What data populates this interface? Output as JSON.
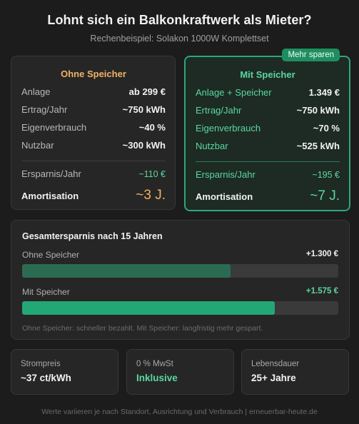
{
  "header": {
    "title": "Lohnt sich ein Balkonkraftwerk als Mieter?",
    "subtitle": "Rechenbeispiel: Solakon 1000W Komplettset"
  },
  "cards": {
    "left": {
      "title": "Ohne Speicher",
      "rows": [
        {
          "label": "Anlage",
          "value": "ab 299 €"
        },
        {
          "label": "Ertrag/Jahr",
          "value": "~750 kWh"
        },
        {
          "label": "Eigenverbrauch",
          "value": "~40 %"
        },
        {
          "label": "Nutzbar",
          "value": "~300 kWh"
        }
      ],
      "savings_label": "Ersparnis/Jahr",
      "savings_value": "~110 €",
      "amort_label": "Amortisation",
      "amort_value": "~3 J."
    },
    "right": {
      "badge": "Mehr sparen",
      "title": "Mit Speicher",
      "rows": [
        {
          "label": "Anlage + Speicher",
          "value": "1.349 €"
        },
        {
          "label": "Ertrag/Jahr",
          "value": "~750 kWh"
        },
        {
          "label": "Eigenverbrauch",
          "value": "~70 %"
        },
        {
          "label": "Nutzbar",
          "value": "~525 kWh"
        }
      ],
      "savings_label": "Ersparnis/Jahr",
      "savings_value": "~195 €",
      "amort_label": "Amortisation",
      "amort_value": "~7 J."
    }
  },
  "totals": {
    "title": "Gesamtersparnis nach 15 Jahren",
    "bars": [
      {
        "label": "Ohne Speicher",
        "amount": "+1.300 €",
        "fill_fraction": 0.66
      },
      {
        "label": "Mit Speicher",
        "amount": "+1.575 €",
        "fill_fraction": 0.8
      }
    ],
    "note": "Ohne Speicher: schneller bezahlt. Mit Speicher: langfristig mehr gespart."
  },
  "stats": [
    {
      "label": "Strompreis",
      "value": "~37 ct/kWh"
    },
    {
      "label": "0 % MwSt",
      "value": "Inklusive"
    },
    {
      "label": "Lebensdauer",
      "value": "25+ Jahre"
    }
  ],
  "footer": "Werte variieren je nach Standort, Ausrichtung und Verbrauch | erneuerbar-heute.de",
  "colors": {
    "accent_green": "#5cd6a0",
    "accent_orange": "#f0b263",
    "badge_green": "#1f8e5f"
  }
}
